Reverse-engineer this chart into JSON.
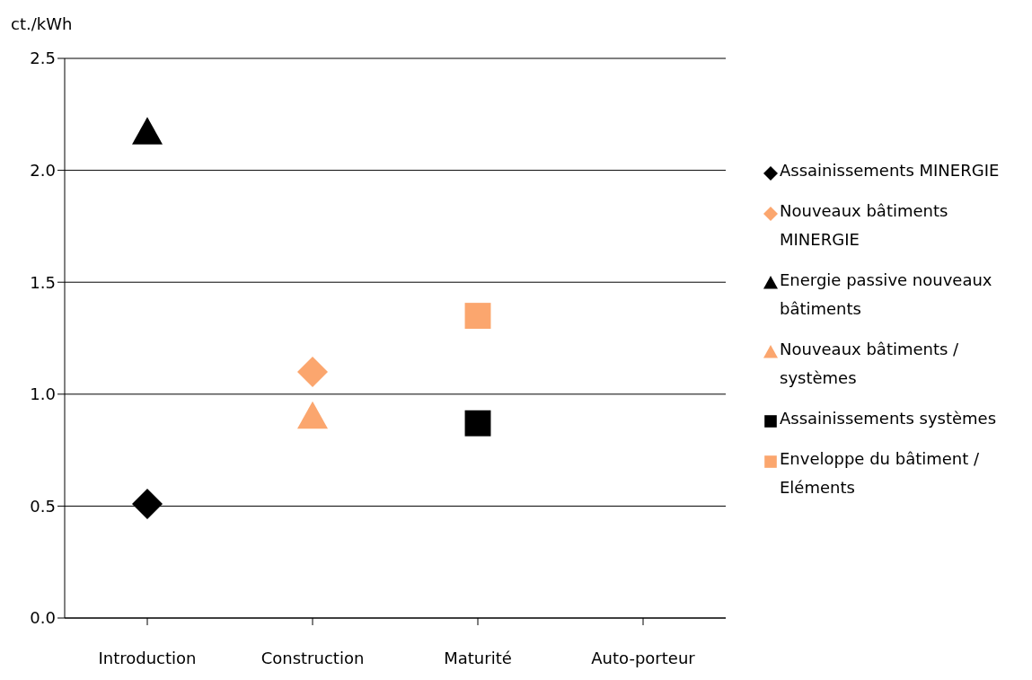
{
  "chart_data": {
    "type": "scatter",
    "ylabel": "ct./kWh",
    "categories": [
      "Introduction",
      "Construction",
      "Maturité",
      "Auto-porteur"
    ],
    "series": [
      {
        "name": "Assainissements MINERGIE",
        "color": "#000000",
        "marker": "diamond",
        "values": [
          0.51,
          null,
          null,
          null
        ]
      },
      {
        "name": "Nouveaux bâtiments MINERGIE",
        "color": "#fba66e",
        "marker": "diamond",
        "values": [
          null,
          1.1,
          null,
          null
        ]
      },
      {
        "name": "Energie passive nouveaux bâtiments",
        "color": "#000000",
        "marker": "triangle",
        "values": [
          2.17,
          null,
          null,
          null
        ]
      },
      {
        "name": "Nouveaux bâtiments / systèmes",
        "color": "#fba66e",
        "marker": "triangle",
        "values": [
          null,
          0.9,
          null,
          null
        ]
      },
      {
        "name": "Assainissements systèmes",
        "color": "#000000",
        "marker": "square",
        "values": [
          null,
          null,
          0.87,
          null
        ]
      },
      {
        "name": "Enveloppe du bâtiment / Eléments",
        "color": "#fba66e",
        "marker": "square",
        "values": [
          null,
          null,
          1.35,
          null
        ]
      }
    ],
    "ylim": [
      0,
      2.5
    ],
    "yticks": [
      {
        "value": 0,
        "label": "0.0"
      },
      {
        "value": 0.5,
        "label": "0.5"
      },
      {
        "value": 1,
        "label": "1.0"
      },
      {
        "value": 1.5,
        "label": "1.5"
      },
      {
        "value": 2,
        "label": "2.0"
      },
      {
        "value": 2.5,
        "label": "2.5"
      }
    ],
    "grid": "y",
    "legend": "right"
  }
}
